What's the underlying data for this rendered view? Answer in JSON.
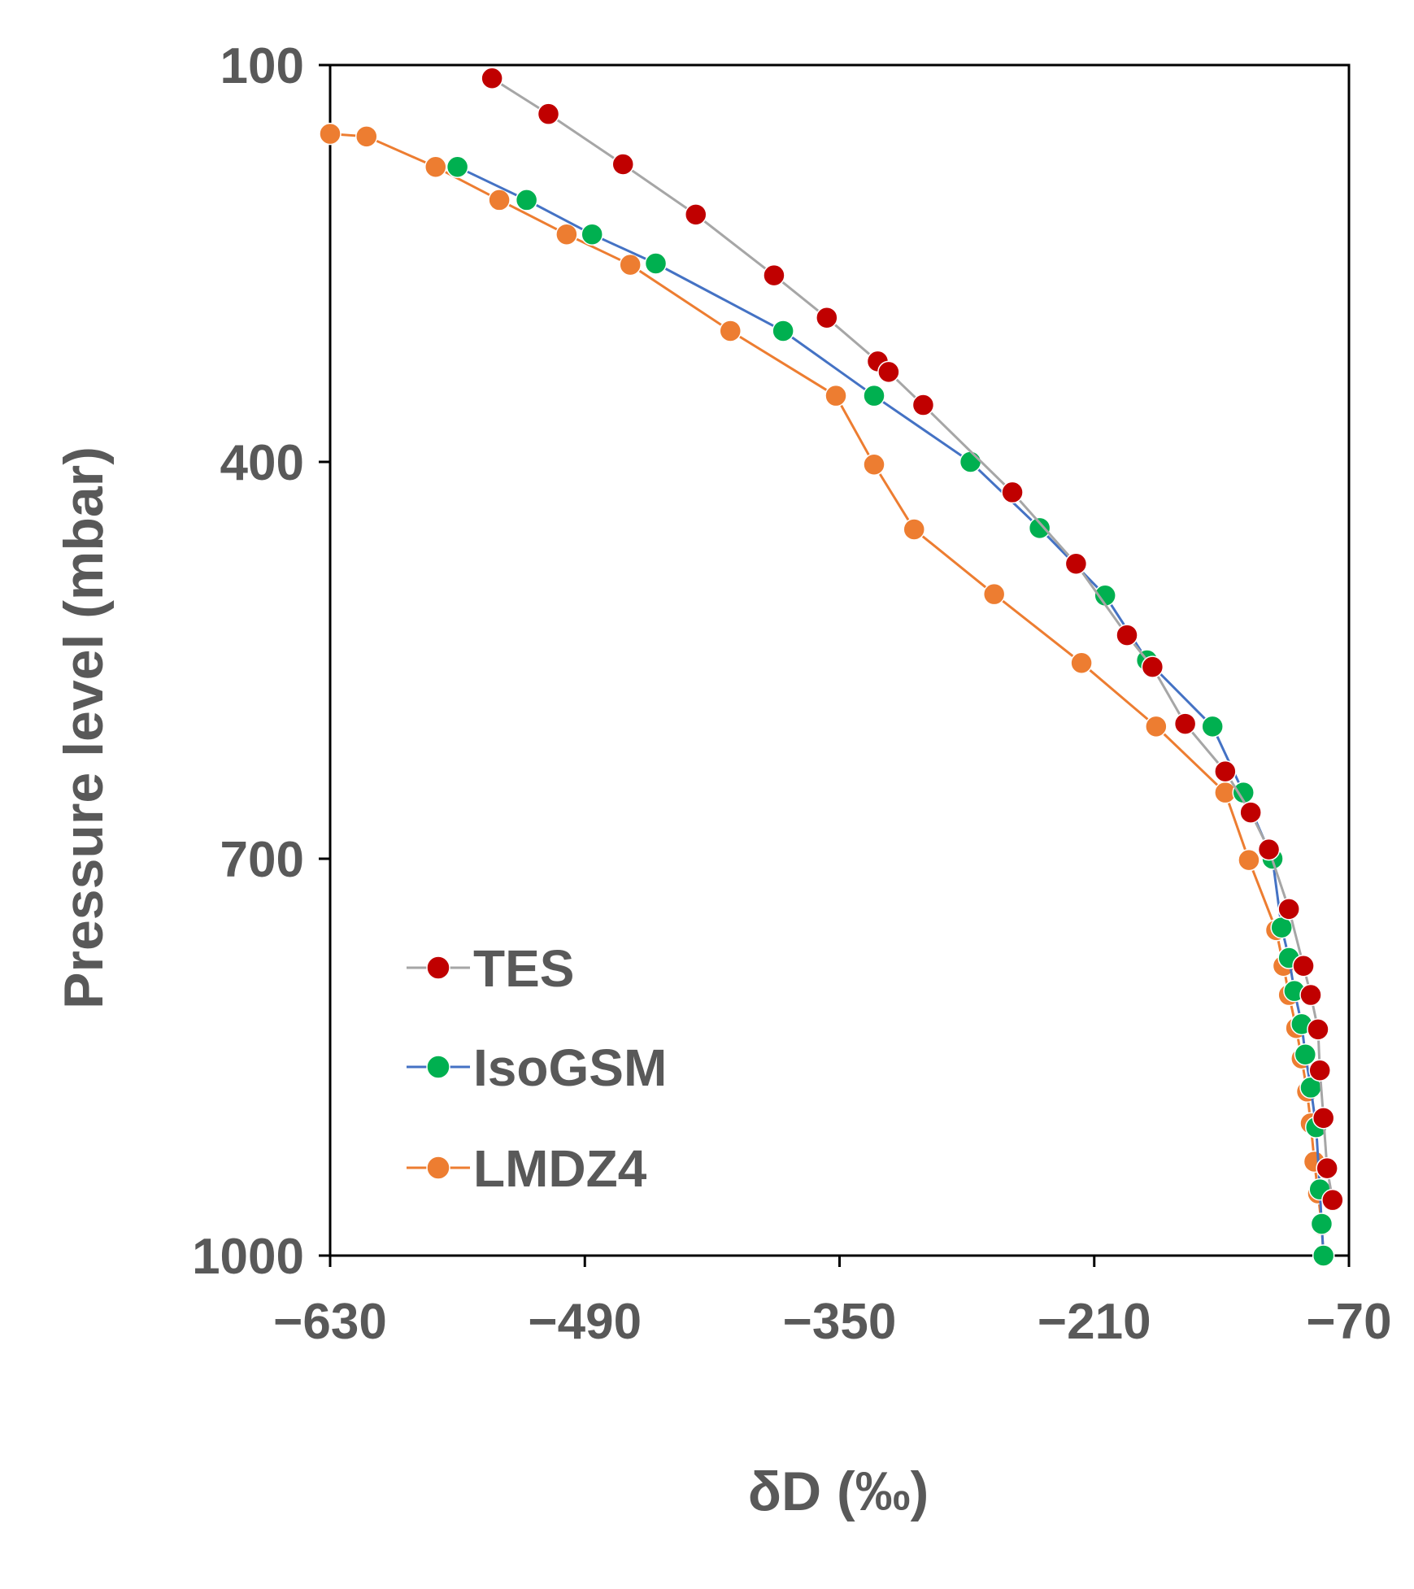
{
  "chart_data": {
    "type": "scatter",
    "xlabel": "δD (‰)",
    "ylabel": "Pressure level  (mbar)",
    "xlim": [
      -630,
      -70
    ],
    "ylim": [
      100,
      1000
    ],
    "y_inverted": true,
    "x_ticks": [
      -630,
      -490,
      -350,
      -210,
      -70
    ],
    "x_tick_labels": [
      "-630",
      "-490",
      "-350",
      "-210",
      "-70"
    ],
    "y_ticks": [
      100,
      400,
      700,
      1000
    ],
    "y_tick_labels": [
      "100",
      "400",
      "700",
      "1000"
    ],
    "grid": false,
    "legend_position": "lower-left",
    "series": [
      {
        "name": "TES",
        "color": "#c00000",
        "line_color": "#a6a6a6",
        "points": [
          {
            "x": -541,
            "y": 110
          },
          {
            "x": -510,
            "y": 137
          },
          {
            "x": -469,
            "y": 175
          },
          {
            "x": -429,
            "y": 213
          },
          {
            "x": -386,
            "y": 259
          },
          {
            "x": -357,
            "y": 291
          },
          {
            "x": -329,
            "y": 324
          },
          {
            "x": -323,
            "y": 332
          },
          {
            "x": -304,
            "y": 357
          },
          {
            "x": -255,
            "y": 423
          },
          {
            "x": -220,
            "y": 477
          },
          {
            "x": -192,
            "y": 531
          },
          {
            "x": -178,
            "y": 555
          },
          {
            "x": -160,
            "y": 598
          },
          {
            "x": -138,
            "y": 634
          },
          {
            "x": -124,
            "y": 665
          },
          {
            "x": -114,
            "y": 693
          },
          {
            "x": -103,
            "y": 738
          },
          {
            "x": -95,
            "y": 781
          },
          {
            "x": -91,
            "y": 803
          },
          {
            "x": -87,
            "y": 829
          },
          {
            "x": -86,
            "y": 860
          },
          {
            "x": -84,
            "y": 896
          },
          {
            "x": -82,
            "y": 934
          },
          {
            "x": -79,
            "y": 958
          }
        ]
      },
      {
        "name": "IsoGSM",
        "color": "#00b050",
        "line_color": "#4472c4",
        "points": [
          {
            "x": -560,
            "y": 177
          },
          {
            "x": -522,
            "y": 202
          },
          {
            "x": -486,
            "y": 228
          },
          {
            "x": -451,
            "y": 250
          },
          {
            "x": -381,
            "y": 301
          },
          {
            "x": -331,
            "y": 350
          },
          {
            "x": -278,
            "y": 400
          },
          {
            "x": -240,
            "y": 450
          },
          {
            "x": -204,
            "y": 501
          },
          {
            "x": -181,
            "y": 550
          },
          {
            "x": -145,
            "y": 600
          },
          {
            "x": -128,
            "y": 650
          },
          {
            "x": -112,
            "y": 700
          },
          {
            "x": -107,
            "y": 752
          },
          {
            "x": -103,
            "y": 775
          },
          {
            "x": -100,
            "y": 800
          },
          {
            "x": -96,
            "y": 825
          },
          {
            "x": -94,
            "y": 848
          },
          {
            "x": -91,
            "y": 873
          },
          {
            "x": -88,
            "y": 903
          },
          {
            "x": -86,
            "y": 950
          },
          {
            "x": -85,
            "y": 976
          },
          {
            "x": -84,
            "y": 1000
          }
        ]
      },
      {
        "name": "LMDZ4",
        "color": "#ed7d31",
        "line_color": "#ed7d31",
        "points": [
          {
            "x": -630,
            "y": 152
          },
          {
            "x": -610,
            "y": 154
          },
          {
            "x": -572,
            "y": 177
          },
          {
            "x": -537,
            "y": 202
          },
          {
            "x": -500,
            "y": 228
          },
          {
            "x": -465,
            "y": 251
          },
          {
            "x": -410,
            "y": 301
          },
          {
            "x": -352,
            "y": 350
          },
          {
            "x": -331,
            "y": 402
          },
          {
            "x": -309,
            "y": 451
          },
          {
            "x": -265,
            "y": 500
          },
          {
            "x": -217,
            "y": 552
          },
          {
            "x": -176,
            "y": 600
          },
          {
            "x": -138,
            "y": 650
          },
          {
            "x": -125,
            "y": 701
          },
          {
            "x": -110,
            "y": 754
          },
          {
            "x": -106,
            "y": 781
          },
          {
            "x": -103,
            "y": 803
          },
          {
            "x": -99,
            "y": 828
          },
          {
            "x": -96,
            "y": 851
          },
          {
            "x": -93,
            "y": 876
          },
          {
            "x": -91,
            "y": 900
          },
          {
            "x": -89,
            "y": 929
          },
          {
            "x": -87,
            "y": 953
          },
          {
            "x": -85,
            "y": 977
          },
          {
            "x": -84,
            "y": 1000
          }
        ]
      }
    ]
  }
}
